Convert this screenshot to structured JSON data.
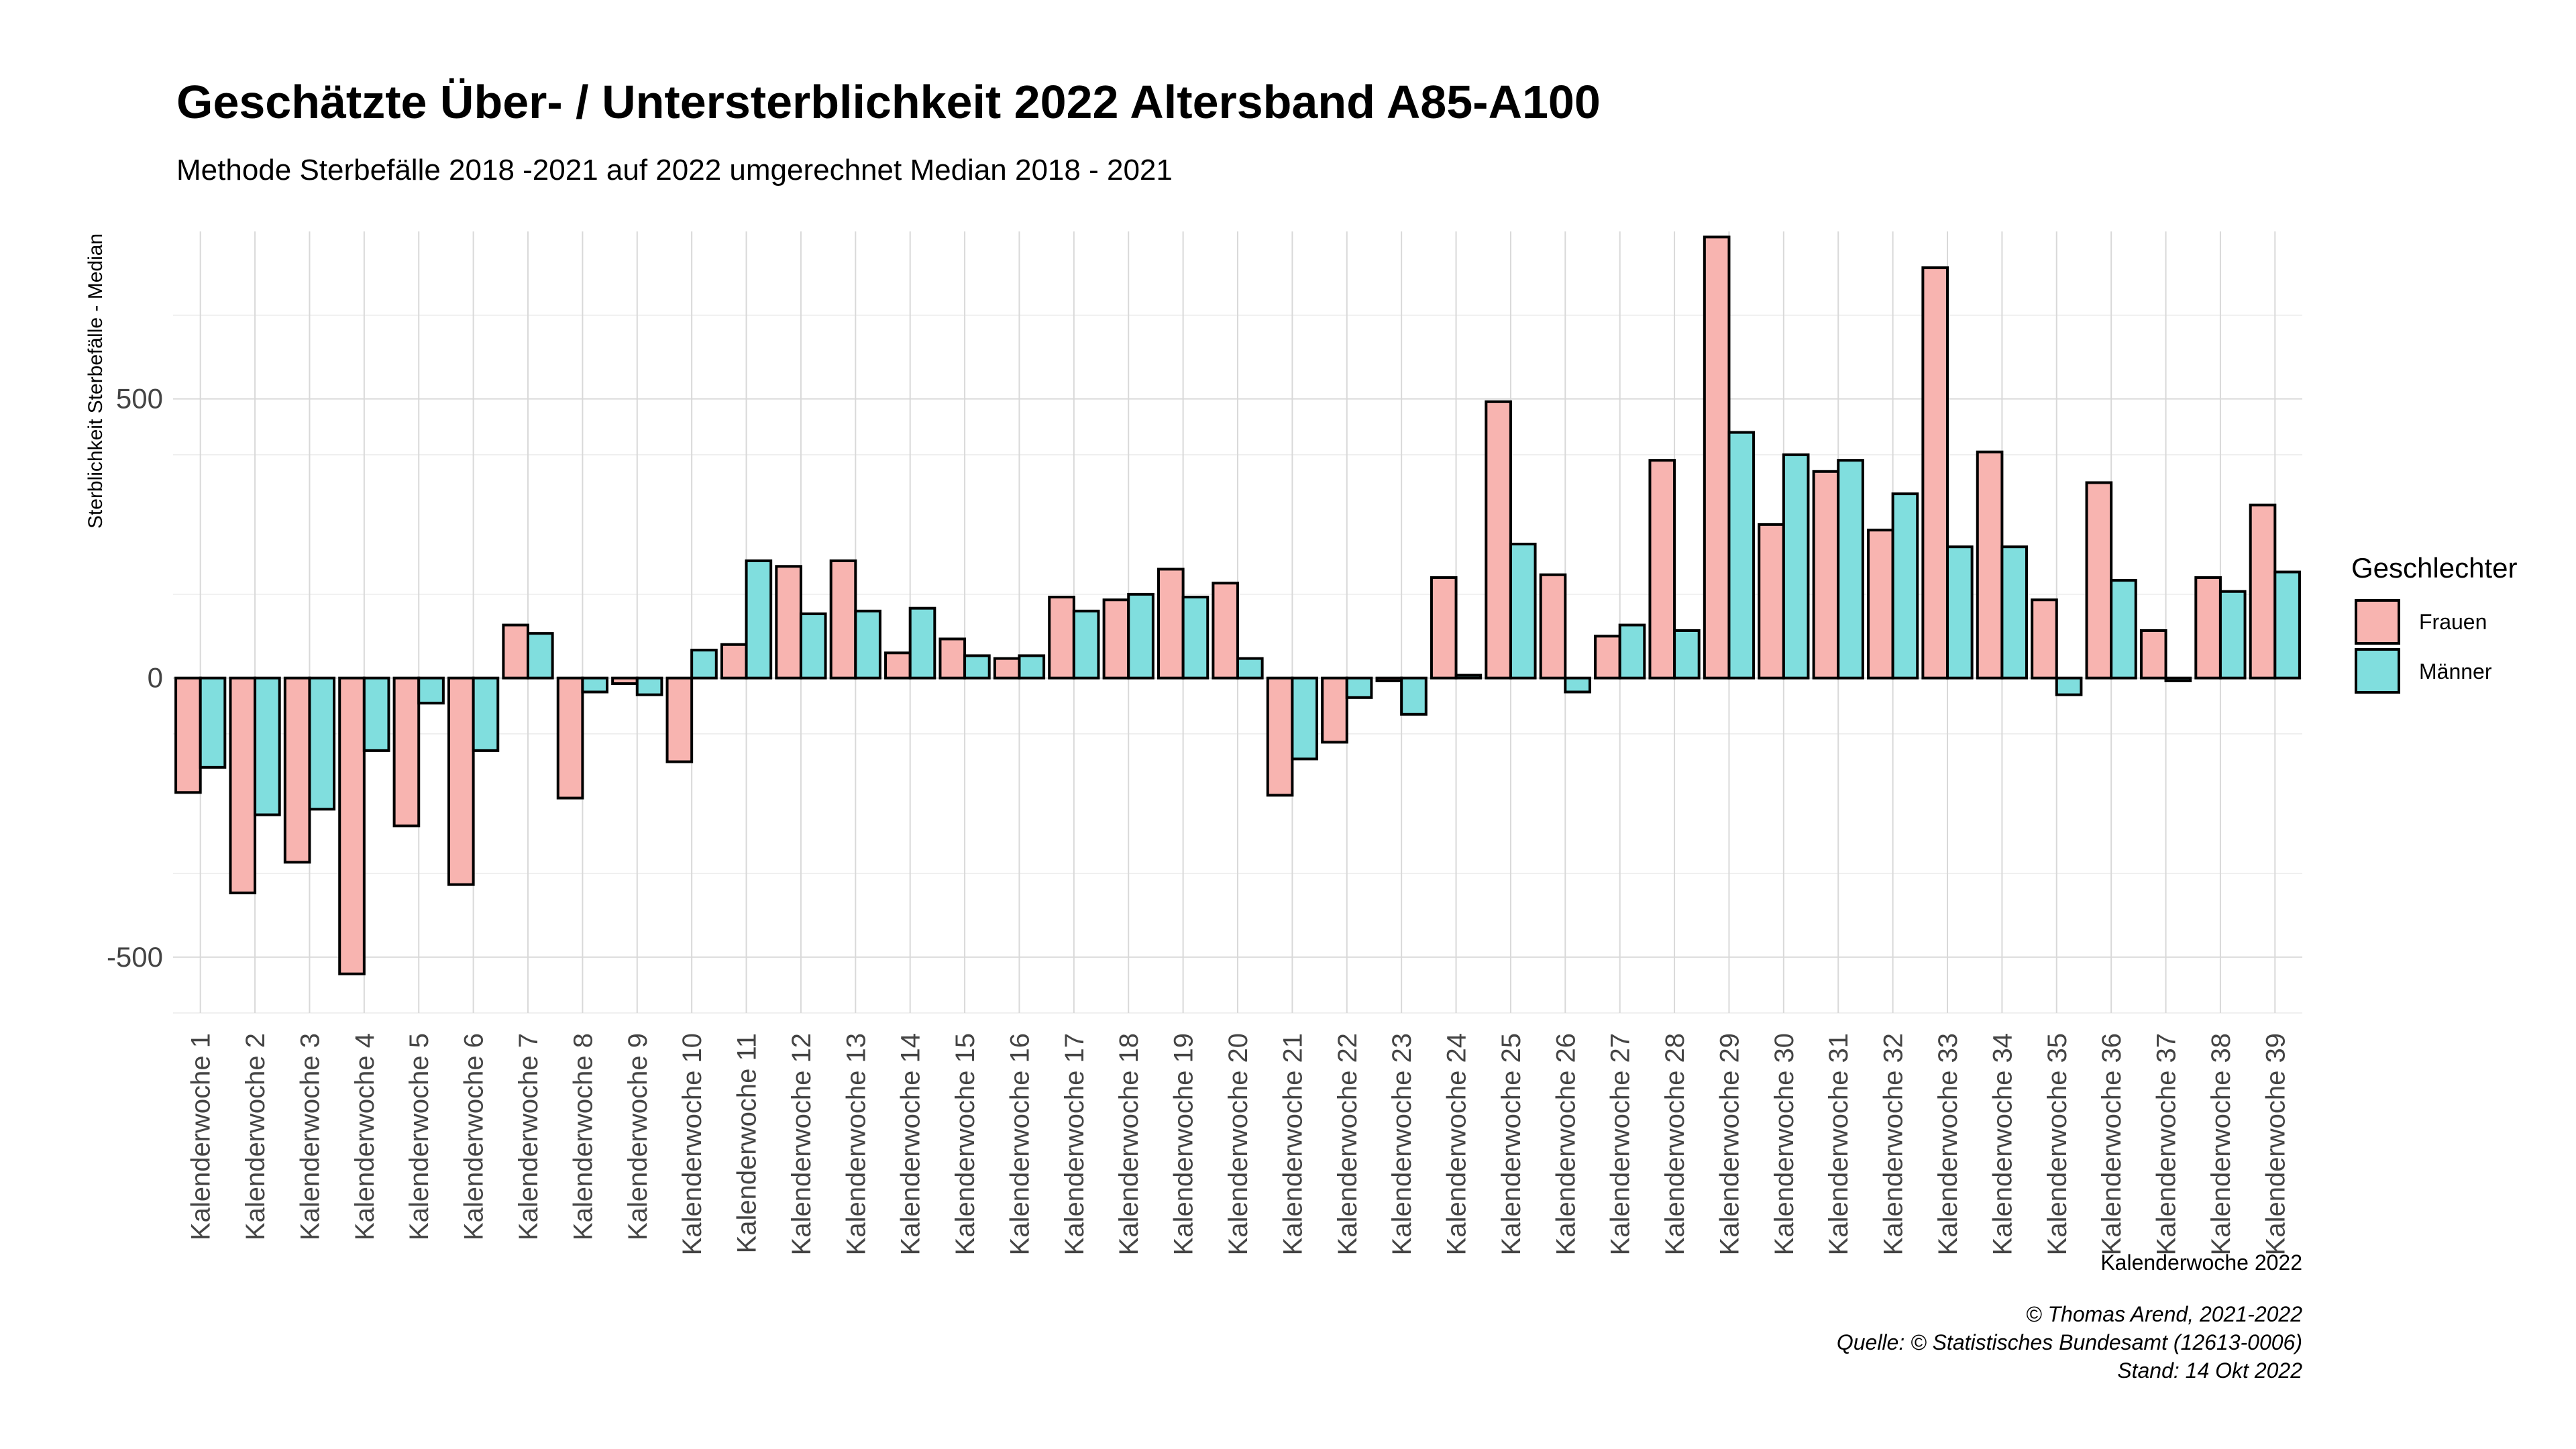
{
  "chart_data": {
    "type": "bar",
    "title": "Geschätzte Über- / Untersterblichkeit 2022 Altersband A85-A100",
    "subtitle": "Methode Sterbefälle 2018 -2021 auf 2022 umgerechnet Median 2018 - 2021",
    "xlabel": "Kalenderwoche 2022",
    "ylabel": "Sterblichkeit Sterbefälle - Median",
    "ylim": [
      -600,
      800
    ],
    "yticks": [
      -500,
      0,
      500
    ],
    "grid": true,
    "legend": {
      "title": "Geschlechter",
      "position": "right"
    },
    "categories": [
      "Kalenderwoche 1",
      "Kalenderwoche 2",
      "Kalenderwoche 3",
      "Kalenderwoche 4",
      "Kalenderwoche 5",
      "Kalenderwoche 6",
      "Kalenderwoche 7",
      "Kalenderwoche 8",
      "Kalenderwoche 9",
      "Kalenderwoche 10",
      "Kalenderwoche 11",
      "Kalenderwoche 12",
      "Kalenderwoche 13",
      "Kalenderwoche 14",
      "Kalenderwoche 15",
      "Kalenderwoche 16",
      "Kalenderwoche 17",
      "Kalenderwoche 18",
      "Kalenderwoche 19",
      "Kalenderwoche 20",
      "Kalenderwoche 21",
      "Kalenderwoche 22",
      "Kalenderwoche 23",
      "Kalenderwoche 24",
      "Kalenderwoche 25",
      "Kalenderwoche 26",
      "Kalenderwoche 27",
      "Kalenderwoche 28",
      "Kalenderwoche 29",
      "Kalenderwoche 30",
      "Kalenderwoche 31",
      "Kalenderwoche 32",
      "Kalenderwoche 33",
      "Kalenderwoche 34",
      "Kalenderwoche 35",
      "Kalenderwoche 36",
      "Kalenderwoche 37",
      "Kalenderwoche 38",
      "Kalenderwoche 39"
    ],
    "series": [
      {
        "name": "Frauen",
        "color": "#F8B4B0",
        "values": [
          -205,
          -385,
          -330,
          -530,
          -265,
          -370,
          95,
          -215,
          -10,
          -150,
          60,
          200,
          210,
          45,
          70,
          35,
          145,
          140,
          195,
          170,
          -210,
          -115,
          -5,
          180,
          495,
          185,
          75,
          390,
          790,
          275,
          370,
          265,
          735,
          405,
          140,
          350,
          85,
          180,
          310
        ]
      },
      {
        "name": "Männer",
        "color": "#80DEDE",
        "values": [
          -160,
          -245,
          -235,
          -130,
          -45,
          -130,
          80,
          -25,
          -30,
          50,
          210,
          115,
          120,
          125,
          40,
          40,
          120,
          150,
          145,
          35,
          -145,
          -35,
          -65,
          5,
          240,
          -25,
          95,
          85,
          440,
          400,
          390,
          330,
          235,
          235,
          -30,
          175,
          -5,
          155,
          190
        ]
      }
    ]
  },
  "caption": {
    "line1": "© Thomas Arend, 2021-2022",
    "line2": "Quelle: © Statistisches Bundesamt (12613-0006)",
    "line3": "Stand: 14 Okt 2022"
  }
}
